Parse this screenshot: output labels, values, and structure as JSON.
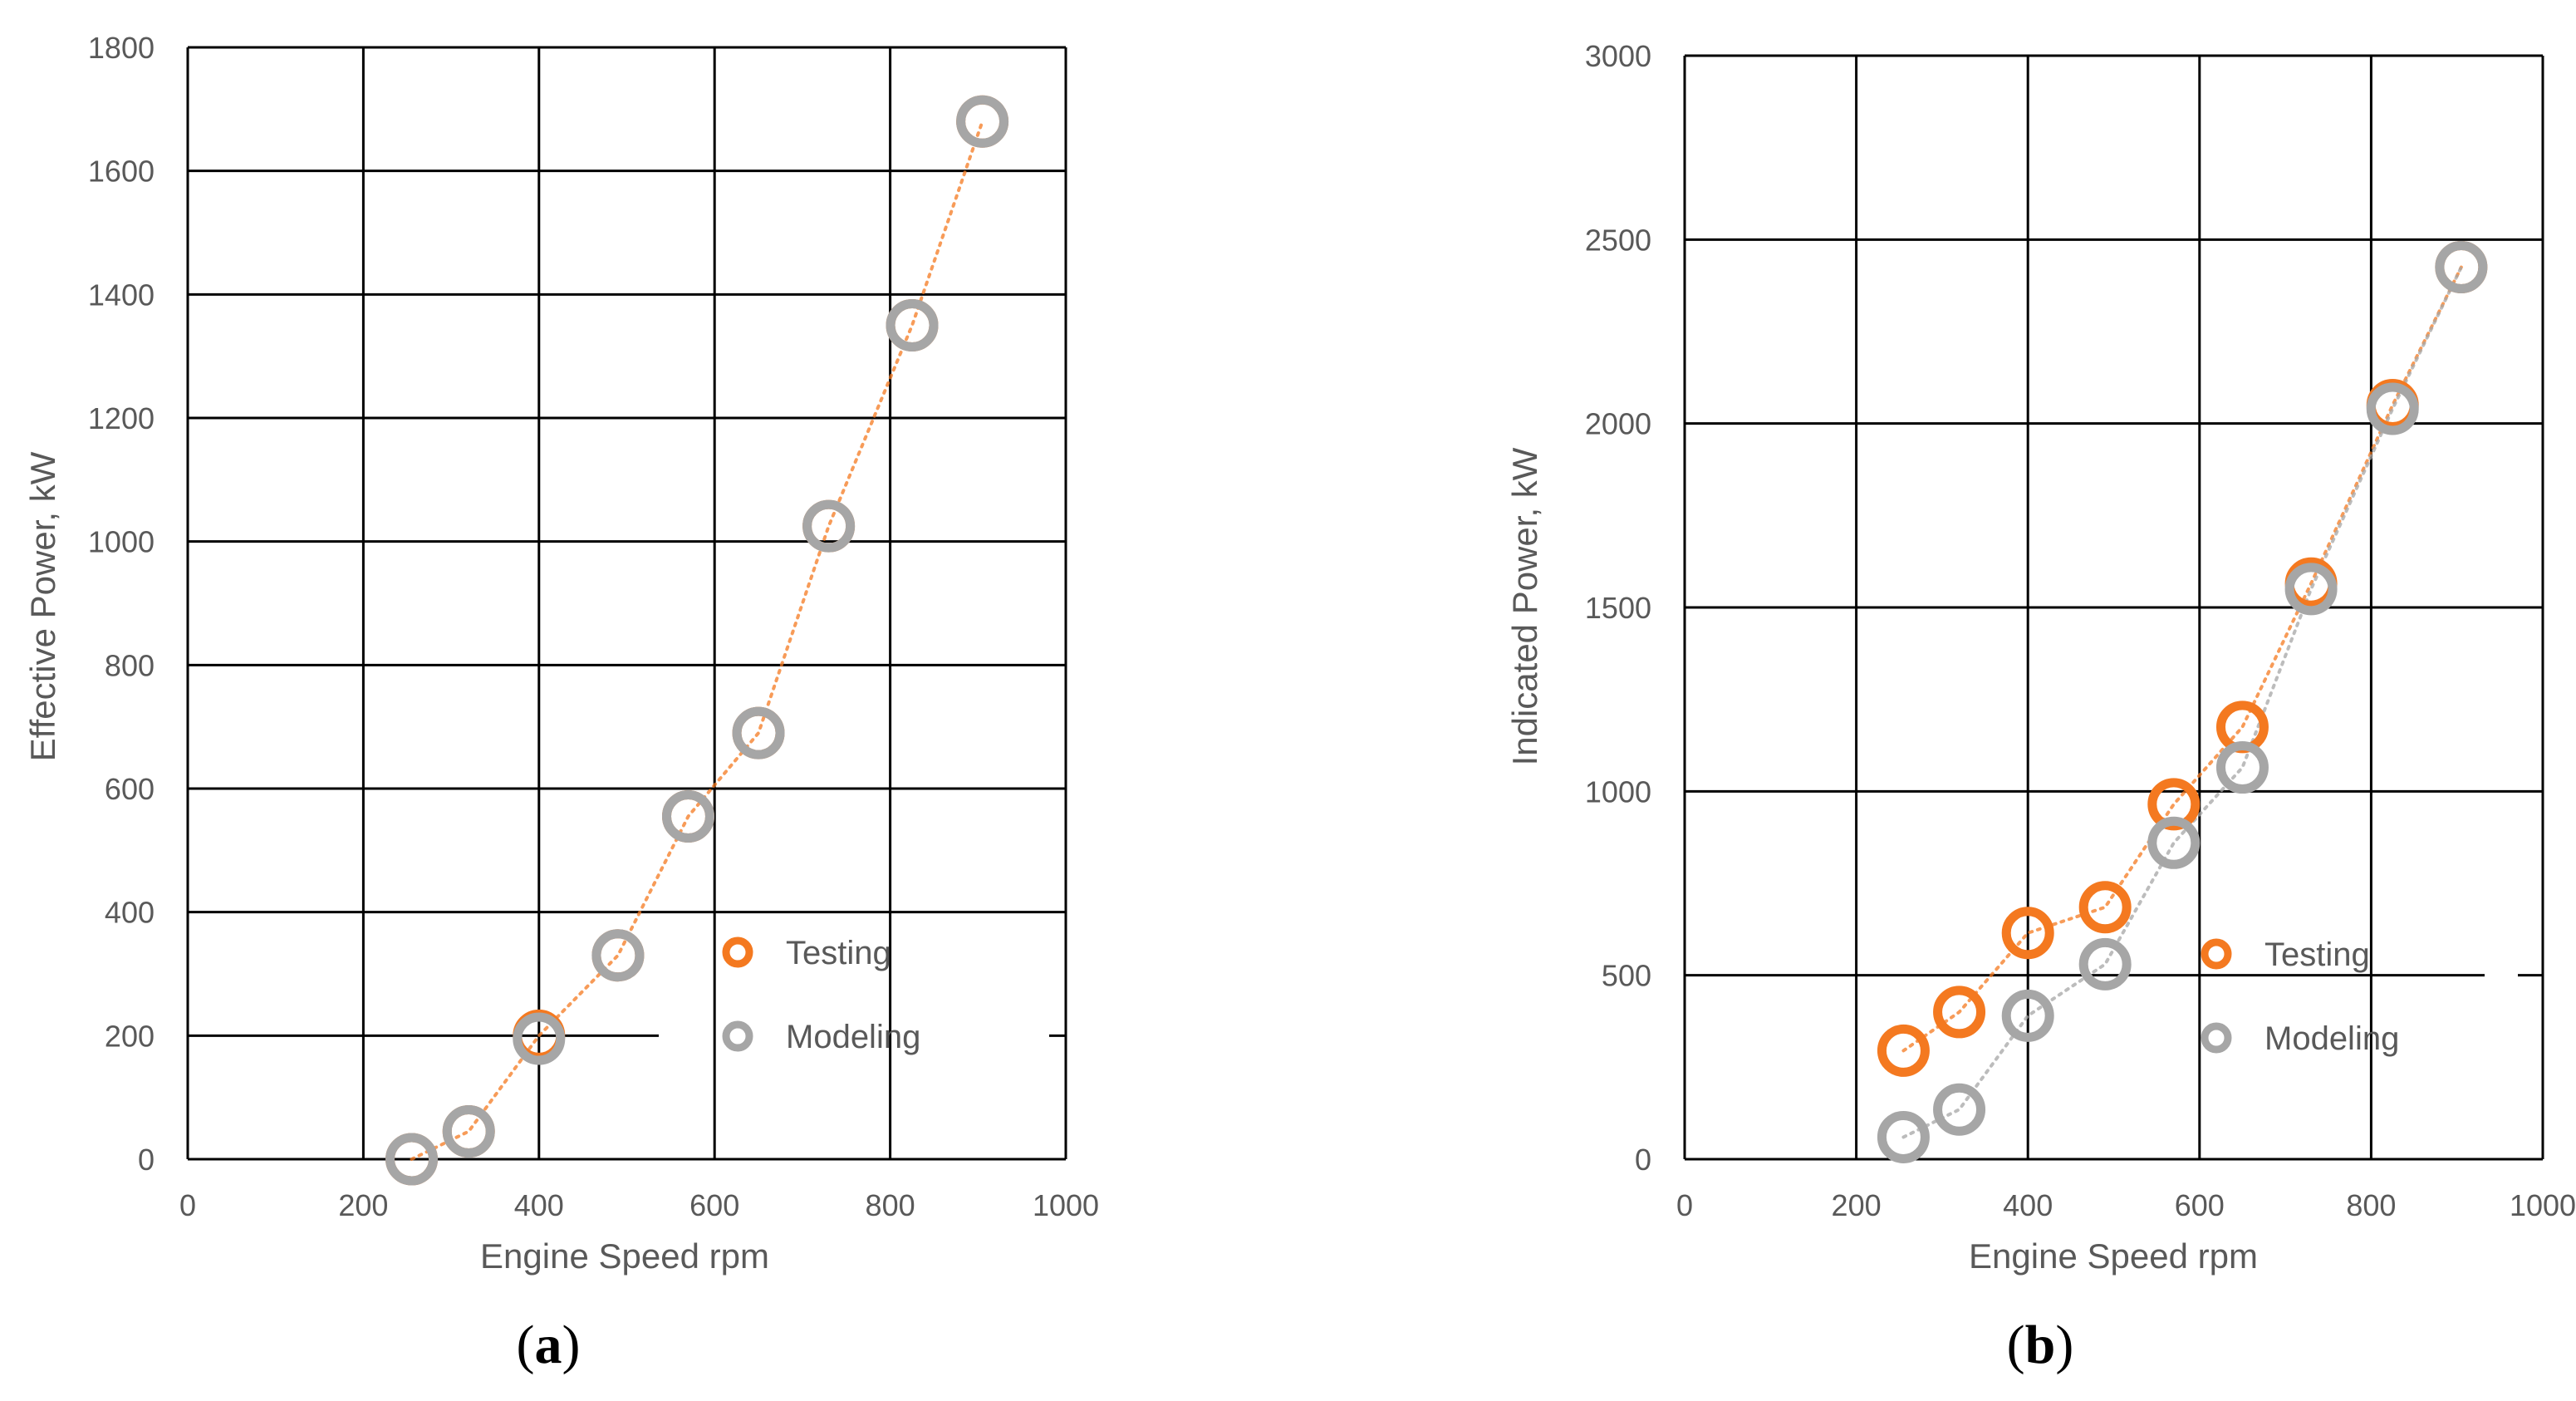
{
  "colors": {
    "testing": "#F47920",
    "modeling": "#A6A6A6",
    "grid": "#000000",
    "text": "#595959"
  },
  "chart_data": [
    {
      "type": "scatter",
      "panel_label": "a",
      "xlabel": "Engine Speed rpm",
      "ylabel": "Effective Power, kW",
      "xlim": [
        0,
        1000
      ],
      "ylim": [
        0,
        1800
      ],
      "xticks": [
        0,
        200,
        400,
        600,
        800,
        1000
      ],
      "yticks": [
        0,
        200,
        400,
        600,
        800,
        1000,
        1200,
        1400,
        1600,
        1800
      ],
      "grid": true,
      "legend_position": "bottom-right",
      "series": [
        {
          "name": "Testing",
          "color": "#F47920",
          "trendline": "dotted",
          "x": [
            255,
            320,
            400,
            490,
            570,
            650,
            730,
            825,
            905
          ],
          "y": [
            0,
            45,
            200,
            330,
            555,
            690,
            1025,
            1350,
            1680
          ]
        },
        {
          "name": "Modeling",
          "color": "#A6A6A6",
          "trendline": "none",
          "x": [
            255,
            320,
            400,
            490,
            570,
            650,
            730,
            825,
            905
          ],
          "y": [
            0,
            45,
            195,
            330,
            555,
            690,
            1025,
            1350,
            1680
          ]
        }
      ]
    },
    {
      "type": "scatter",
      "panel_label": "b",
      "xlabel": "Engine Speed rpm",
      "ylabel": "Indicated Power, kW",
      "xlim": [
        0,
        1000
      ],
      "ylim": [
        0,
        3000
      ],
      "xticks": [
        0,
        200,
        400,
        600,
        800,
        1000
      ],
      "yticks": [
        0,
        500,
        1000,
        1500,
        2000,
        2500,
        3000
      ],
      "grid": true,
      "legend_position": "bottom-right",
      "series": [
        {
          "name": "Testing",
          "color": "#F47920",
          "trendline": "dotted",
          "x": [
            255,
            320,
            400,
            490,
            570,
            650,
            730,
            825,
            905
          ],
          "y": [
            295,
            400,
            615,
            685,
            965,
            1175,
            1565,
            2050,
            2425
          ]
        },
        {
          "name": "Modeling",
          "color": "#A6A6A6",
          "trendline": "dotted",
          "x": [
            255,
            320,
            400,
            490,
            570,
            650,
            730,
            825,
            905
          ],
          "y": [
            60,
            135,
            390,
            530,
            860,
            1065,
            1550,
            2040,
            2425
          ]
        }
      ]
    }
  ]
}
